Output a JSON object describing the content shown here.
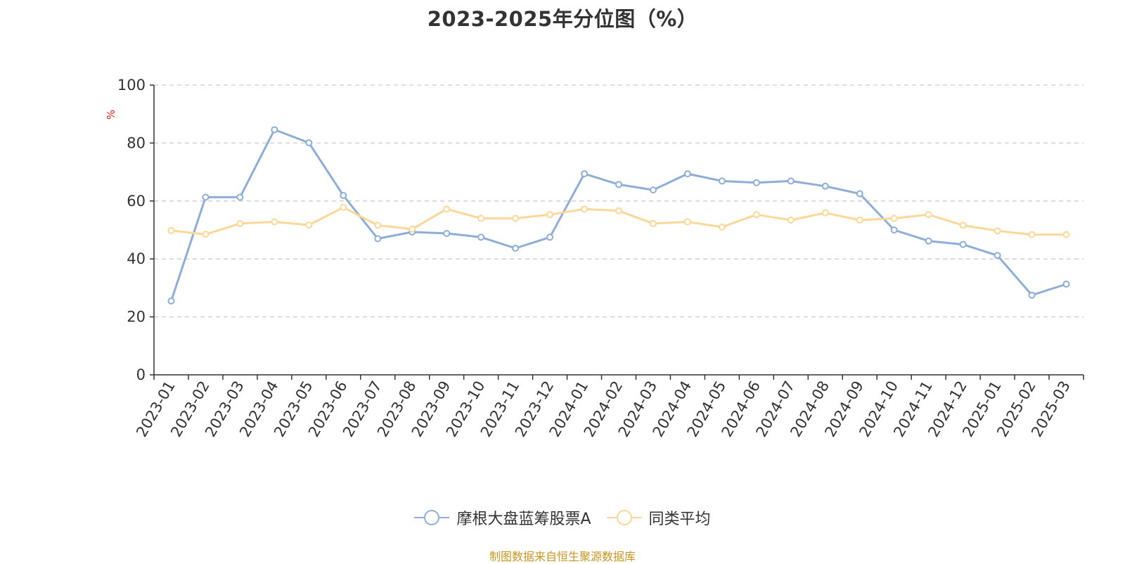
{
  "chart_data": {
    "type": "line",
    "title": "2023-2025年分位图（%）",
    "ylabel": "%",
    "ylim": [
      0,
      100
    ],
    "yticks": [
      0,
      20,
      40,
      60,
      80,
      100
    ],
    "grid": "horizontal-dashed",
    "legend_position": "bottom",
    "categories": [
      "2023-01",
      "2023-02",
      "2023-03",
      "2023-04",
      "2023-05",
      "2023-06",
      "2023-07",
      "2023-08",
      "2023-09",
      "2023-10",
      "2023-11",
      "2023-12",
      "2024-01",
      "2024-02",
      "2024-03",
      "2024-04",
      "2024-05",
      "2024-06",
      "2024-07",
      "2024-08",
      "2024-09",
      "2024-10",
      "2024-11",
      "2024-12",
      "2025-01",
      "2025-02",
      "2025-03"
    ],
    "series": [
      {
        "name": "摩根大盘蓝筹股票A",
        "color": "#8eaed8",
        "values": [
          25.5,
          61.3,
          61.3,
          84.6,
          80.1,
          61.9,
          47.0,
          49.3,
          48.8,
          47.5,
          43.7,
          47.5,
          69.4,
          65.7,
          63.8,
          69.4,
          66.9,
          66.3,
          66.9,
          65.1,
          62.5,
          50.0,
          46.2,
          45.0,
          41.2,
          27.5,
          31.3
        ]
      },
      {
        "name": "同类平均",
        "color": "#fbd898",
        "values": [
          49.8,
          48.5,
          52.2,
          52.8,
          51.7,
          57.8,
          51.6,
          50.3,
          57.2,
          54.0,
          54.0,
          55.3,
          57.2,
          56.6,
          52.2,
          52.8,
          51.0,
          55.3,
          53.4,
          55.9,
          53.4,
          54.0,
          55.3,
          51.6,
          49.7,
          48.4,
          48.4
        ]
      }
    ]
  },
  "source_note": "制图数据来自恒生聚源数据库",
  "colors": {
    "title": "#333333",
    "axis": "#333333",
    "grid": "#cccccc",
    "y_unit": "#e02020",
    "source_note": "#c8961e"
  }
}
